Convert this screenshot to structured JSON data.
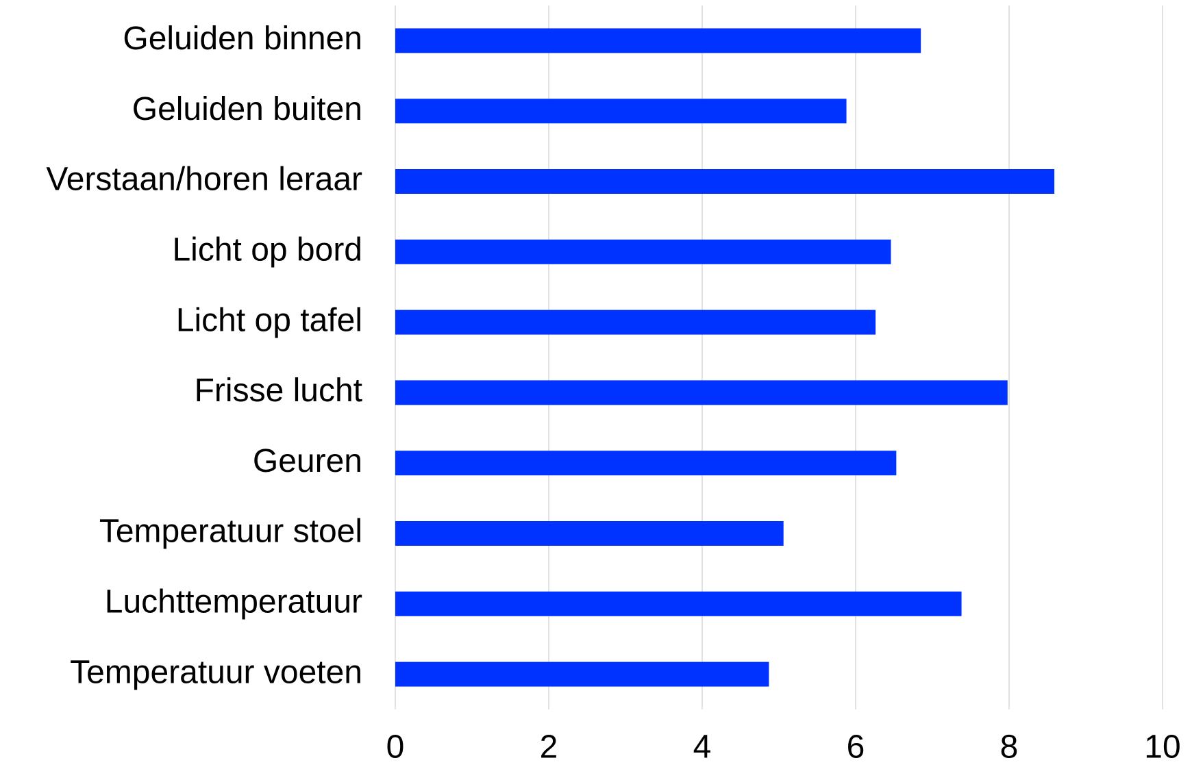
{
  "chart_data": {
    "type": "bar",
    "orientation": "horizontal",
    "categories": [
      "Geluiden binnen",
      "Geluiden buiten",
      "Verstaan/horen leraar",
      "Licht op bord",
      "Licht op tafel",
      "Frisse lucht",
      "Geuren",
      "Temperatuur stoel",
      "Luchttemperatuur",
      "Temperatuur voeten"
    ],
    "values": [
      6.85,
      5.88,
      8.59,
      6.46,
      6.26,
      7.98,
      6.53,
      5.06,
      7.38,
      4.87
    ],
    "color": "#0033ff",
    "xlim": [
      0,
      10
    ],
    "xticks": [
      0,
      2,
      4,
      6,
      8,
      10
    ],
    "grid": true
  }
}
